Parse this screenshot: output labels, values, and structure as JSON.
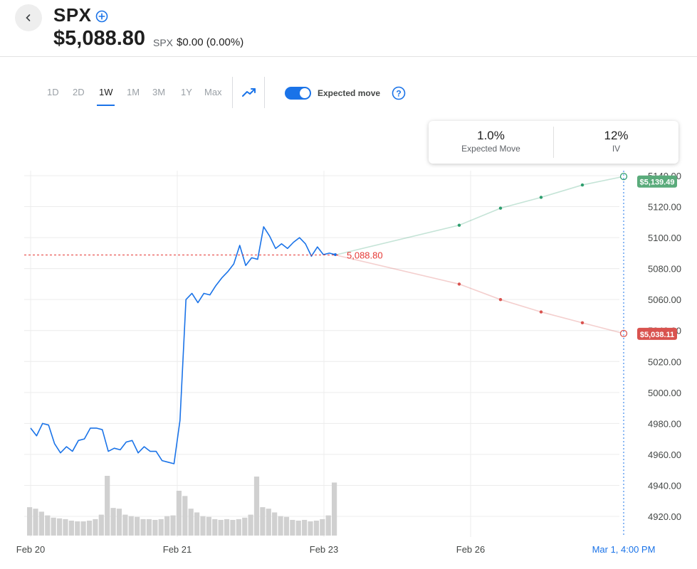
{
  "header": {
    "back_label": "‹",
    "ticker": "SPX",
    "price": "$5,088.80",
    "sub_ticker": "SPX",
    "change": "$0.00 (0.00%)"
  },
  "toolbar": {
    "ranges": [
      "1D",
      "2D",
      "1W",
      "1M",
      "3M",
      "1Y",
      "Max"
    ],
    "active_range": "1W",
    "expected_move_label": "Expected move",
    "expected_move_enabled": true
  },
  "info_card": {
    "expected_move_value": "1.0%",
    "expected_move_label": "Expected Move",
    "iv_value": "12%",
    "iv_label": "IV"
  },
  "colors": {
    "price_line": "#1a73e8",
    "upper_band": "#2e9e6e",
    "lower_band": "#d9534f",
    "ref_line": "#e53935",
    "volume": "#d0d0d0",
    "crosshair": "#1a73e8"
  },
  "chart_data": {
    "type": "line",
    "ylim": [
      4910,
      5150
    ],
    "y_ticks": [
      "5140.00",
      "5120.00",
      "5100.00",
      "5080.00",
      "5060.00",
      "5040.00",
      "5020.00",
      "5000.00",
      "4980.00",
      "4960.00",
      "4940.00",
      "4920.00"
    ],
    "x_labels": [
      "Feb 20",
      "Feb 21",
      "Feb 23",
      "Feb 26",
      "Mar 1, 4:00 PM"
    ],
    "reference_label": "5,088.80",
    "reference_value": 5088.8,
    "price_series": [
      4977,
      4972,
      4980,
      4979,
      4967,
      4961,
      4965,
      4962,
      4969,
      4970,
      4977,
      4977,
      4976,
      4962,
      4964,
      4963,
      4968,
      4969,
      4961,
      4965,
      4962,
      4962,
      4956,
      4955,
      4954,
      4982,
      5060,
      5064,
      5058,
      5064,
      5063,
      5069,
      5074,
      5078,
      5083,
      5095,
      5082,
      5087,
      5086,
      5107,
      5101,
      5093,
      5096,
      5093,
      5097,
      5100,
      5096,
      5088,
      5094,
      5089,
      5090,
      5089
    ],
    "volume_series": [
      38,
      36,
      32,
      27,
      24,
      23,
      22,
      20,
      19,
      19,
      20,
      22,
      28,
      80,
      37,
      36,
      28,
      26,
      25,
      22,
      22,
      21,
      22,
      26,
      27,
      60,
      53,
      36,
      31,
      26,
      25,
      22,
      21,
      22,
      21,
      22,
      24,
      28,
      79,
      38,
      36,
      31,
      26,
      25,
      21,
      20,
      21,
      19,
      20,
      22,
      27,
      71
    ],
    "volume_scale_max": 100,
    "upper_band": [
      5088.8,
      5108,
      5119,
      5126,
      5134,
      5139.49
    ],
    "lower_band": [
      5088.8,
      5070,
      5060,
      5052,
      5045,
      5038.11
    ],
    "upper_badge": "$5,139.49",
    "lower_badge": "$5,038.11"
  }
}
